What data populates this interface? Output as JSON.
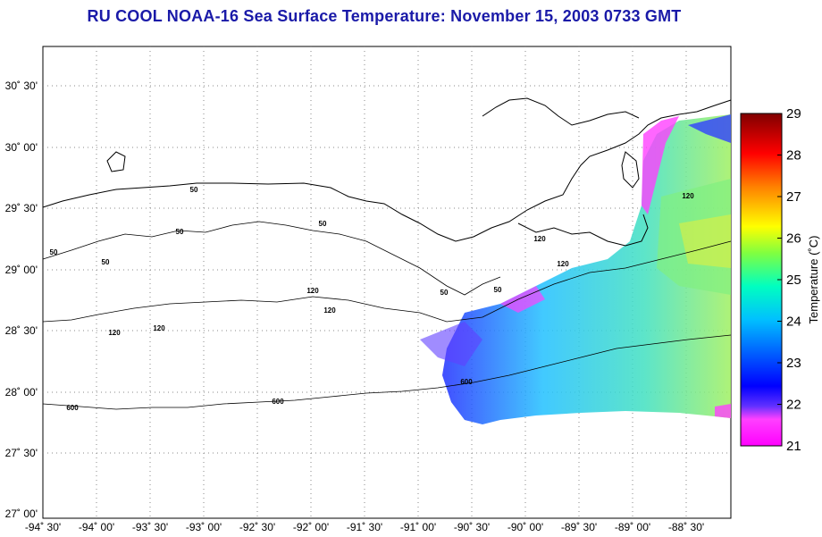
{
  "title": "RU COOL  NOAA-16  Sea Surface Temperature:  November 15, 2003 0733 GMT",
  "lat_labels": [
    "30˚ 30'",
    "30˚ 00'",
    "29˚ 30'",
    "29˚ 00'",
    "28˚ 30'",
    "28˚ 00'",
    "27˚ 30'",
    "27˚ 00'"
  ],
  "lon_labels": [
    "-94˚ 30'",
    "-94˚ 00'",
    "-93˚ 30'",
    "-93˚ 00'",
    "-92˚ 30'",
    "-92˚ 00'",
    "-91˚ 30'",
    "-91˚ 00'",
    "-90˚ 30'",
    "-90˚ 00'",
    "-89˚ 30'",
    "-89˚ 00'",
    "-88˚ 30'"
  ],
  "colorbar": {
    "label": "Temperature (˚C)",
    "ticks": [
      "29",
      "28",
      "27",
      "26",
      "25",
      "24",
      "23",
      "22",
      "21"
    ],
    "min": 21,
    "max": 29,
    "colors": [
      "#ff00ff",
      "#0000ff",
      "#00ffff",
      "#ffff00",
      "#ff0000",
      "#800000"
    ]
  },
  "contour_labels": [
    "50",
    "50",
    "50",
    "50",
    "50",
    "50",
    "50",
    "120",
    "120",
    "120",
    "120",
    "120",
    "120",
    "120",
    "600",
    "600",
    "600"
  ],
  "colors": {
    "title": "#1a1aa8",
    "grid": "#888888",
    "coast": "#000000"
  }
}
